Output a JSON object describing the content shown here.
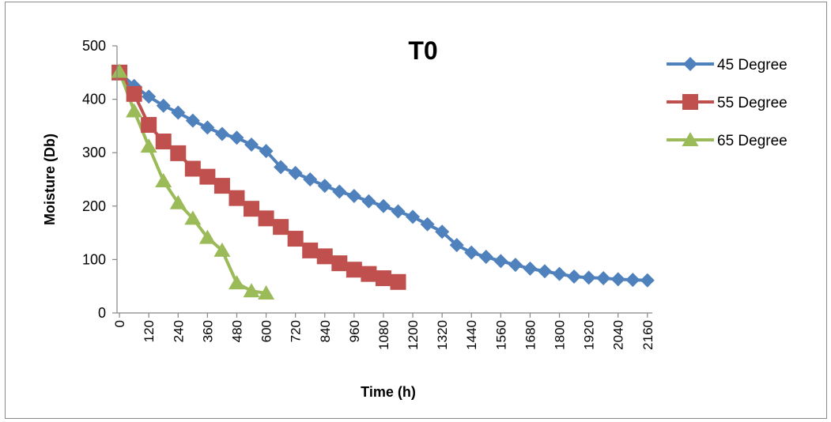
{
  "chart_data": {
    "type": "line",
    "title": "T0",
    "xlabel": "Time (h)",
    "ylabel": "Moisture (Db)",
    "xlim": [
      -10,
      2180
    ],
    "ylim": [
      0,
      500
    ],
    "x_ticks": [
      0,
      120,
      240,
      360,
      480,
      600,
      720,
      840,
      960,
      1080,
      1200,
      1320,
      1440,
      1560,
      1680,
      1800,
      1920,
      2040,
      2160
    ],
    "y_ticks": [
      0,
      100,
      200,
      300,
      400,
      500
    ],
    "grid": false,
    "legend_position": "right",
    "series": [
      {
        "name": "45 Degree",
        "color": "#4f81bd",
        "marker": "diamond",
        "x": [
          0,
          60,
          120,
          180,
          240,
          300,
          360,
          420,
          480,
          540,
          600,
          660,
          720,
          780,
          840,
          900,
          960,
          1020,
          1080,
          1140,
          1200,
          1260,
          1320,
          1380,
          1440,
          1500,
          1560,
          1620,
          1680,
          1740,
          1800,
          1860,
          1920,
          1980,
          2040,
          2100,
          2160
        ],
        "y": [
          450,
          425,
          405,
          388,
          375,
          360,
          347,
          335,
          328,
          315,
          303,
          273,
          262,
          250,
          238,
          227,
          219,
          209,
          200,
          190,
          180,
          166,
          152,
          127,
          113,
          105,
          97,
          90,
          83,
          78,
          73,
          68,
          66,
          65,
          63,
          62,
          61
        ]
      },
      {
        "name": "55 Degree",
        "color": "#c0504d",
        "marker": "square",
        "x": [
          0,
          60,
          120,
          180,
          240,
          300,
          360,
          420,
          480,
          540,
          600,
          660,
          720,
          780,
          840,
          900,
          960,
          1020,
          1080,
          1140
        ],
        "y": [
          450,
          410,
          352,
          321,
          299,
          270,
          255,
          238,
          215,
          195,
          177,
          161,
          139,
          117,
          106,
          93,
          81,
          73,
          65,
          58
        ]
      },
      {
        "name": "65 Degree",
        "color": "#9bbb59",
        "marker": "triangle",
        "x": [
          0,
          60,
          120,
          180,
          240,
          300,
          360,
          420,
          480,
          540,
          600
        ],
        "y": [
          452,
          378,
          312,
          247,
          206,
          177,
          141,
          117,
          56,
          41,
          37
        ]
      }
    ]
  }
}
